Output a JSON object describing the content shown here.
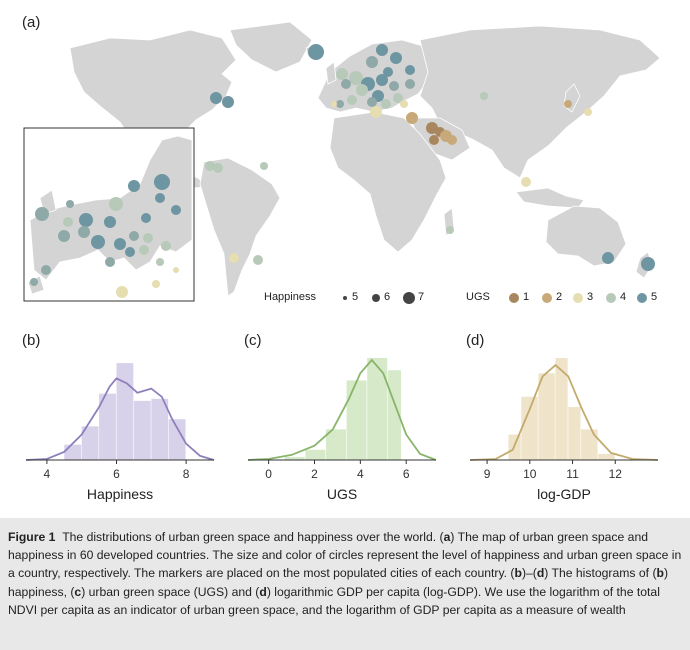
{
  "panel_a": {
    "label": "(a)",
    "legend": {
      "happiness_title": "Happiness",
      "happiness_levels": [
        "5",
        "6",
        "7"
      ],
      "ugs_title": "UGS",
      "ugs_levels": [
        "1",
        "2",
        "3",
        "4",
        "5"
      ],
      "ugs_colors": [
        "#a8875e",
        "#c8a97a",
        "#e6ddb0",
        "#b7c9b8",
        "#6e95a2"
      ],
      "happiness_color": "#444444"
    }
  },
  "chart_data": [
    {
      "type": "histogram",
      "panel": "(b)",
      "xlabel": "Happiness",
      "color": "#8f80bd",
      "fill": "#d8d1ea",
      "xlim": [
        3.4,
        8.8
      ],
      "xticks": [
        "4",
        "6",
        "8"
      ],
      "bins": [
        {
          "x0": 4.5,
          "x1": 5.0,
          "value": 0.15
        },
        {
          "x0": 5.0,
          "x1": 5.5,
          "value": 0.33
        },
        {
          "x0": 5.5,
          "x1": 6.0,
          "value": 0.65
        },
        {
          "x0": 6.0,
          "x1": 6.5,
          "value": 0.95
        },
        {
          "x0": 6.5,
          "x1": 7.0,
          "value": 0.58
        },
        {
          "x0": 7.0,
          "x1": 7.5,
          "value": 0.6
        },
        {
          "x0": 7.5,
          "x1": 8.0,
          "value": 0.4
        }
      ],
      "kde": [
        [
          3.4,
          0
        ],
        [
          4.0,
          0.01
        ],
        [
          4.5,
          0.08
        ],
        [
          5.0,
          0.25
        ],
        [
          5.5,
          0.52
        ],
        [
          5.8,
          0.72
        ],
        [
          6.0,
          0.8
        ],
        [
          6.3,
          0.75
        ],
        [
          6.6,
          0.66
        ],
        [
          7.0,
          0.7
        ],
        [
          7.3,
          0.62
        ],
        [
          7.6,
          0.4
        ],
        [
          8.0,
          0.16
        ],
        [
          8.4,
          0.04
        ],
        [
          8.8,
          0
        ]
      ]
    },
    {
      "type": "histogram",
      "panel": "(c)",
      "xlabel": "UGS",
      "color": "#88b56a",
      "fill": "#d6e9c8",
      "xlim": [
        -0.9,
        7.3
      ],
      "xticks": [
        "0",
        "2",
        "4",
        "6"
      ],
      "bins": [
        {
          "x0": 0.7,
          "x1": 1.6,
          "value": 0.03
        },
        {
          "x0": 1.6,
          "x1": 2.5,
          "value": 0.1
        },
        {
          "x0": 2.5,
          "x1": 3.4,
          "value": 0.3
        },
        {
          "x0": 3.4,
          "x1": 4.3,
          "value": 0.78
        },
        {
          "x0": 4.3,
          "x1": 5.2,
          "value": 1.0
        },
        {
          "x0": 5.2,
          "x1": 5.8,
          "value": 0.88
        }
      ],
      "kde": [
        [
          -0.9,
          0
        ],
        [
          0,
          0.01
        ],
        [
          1,
          0.05
        ],
        [
          2,
          0.14
        ],
        [
          2.8,
          0.3
        ],
        [
          3.5,
          0.6
        ],
        [
          4.0,
          0.85
        ],
        [
          4.5,
          0.98
        ],
        [
          5.0,
          0.85
        ],
        [
          5.5,
          0.55
        ],
        [
          6,
          0.25
        ],
        [
          6.6,
          0.06
        ],
        [
          7.3,
          0
        ]
      ]
    },
    {
      "type": "histogram",
      "panel": "(d)",
      "xlabel": "log-GDP",
      "color": "#c2ab6c",
      "fill": "#efe4c9",
      "xlim": [
        8.6,
        13.0
      ],
      "xticks": [
        "9",
        "10",
        "11",
        "12"
      ],
      "bins": [
        {
          "x0": 9.5,
          "x1": 9.8,
          "value": 0.25
        },
        {
          "x0": 9.8,
          "x1": 10.2,
          "value": 0.62
        },
        {
          "x0": 10.2,
          "x1": 10.6,
          "value": 0.85
        },
        {
          "x0": 10.6,
          "x1": 10.9,
          "value": 1.0
        },
        {
          "x0": 10.9,
          "x1": 11.2,
          "value": 0.52
        },
        {
          "x0": 11.2,
          "x1": 11.6,
          "value": 0.3
        },
        {
          "x0": 11.6,
          "x1": 12.0,
          "value": 0.06
        }
      ],
      "kde": [
        [
          8.6,
          0
        ],
        [
          9.2,
          0.01
        ],
        [
          9.6,
          0.1
        ],
        [
          10.0,
          0.5
        ],
        [
          10.3,
          0.82
        ],
        [
          10.6,
          0.93
        ],
        [
          10.9,
          0.82
        ],
        [
          11.2,
          0.52
        ],
        [
          11.5,
          0.25
        ],
        [
          11.9,
          0.07
        ],
        [
          12.4,
          0.01
        ],
        [
          13.0,
          0
        ]
      ]
    }
  ],
  "caption": {
    "label": "Figure 1",
    "text": "The distributions of urban green space and happiness over the world. (a) The map of urban green space and happiness in 60 developed countries. The size and color of circles represent the level of happiness and urban green space in a country, respectively. The markers are placed on the most populated cities of each country. (b)–(d) The histograms of (b) happiness, (c) urban green space (UGS) and (d) logarithmic GDP per capita (log-GDP). We use the logarithm of the total NDVI per capita as an indicator of urban green space, and the logarithm of GDP per capita as a measure of wealth"
  }
}
